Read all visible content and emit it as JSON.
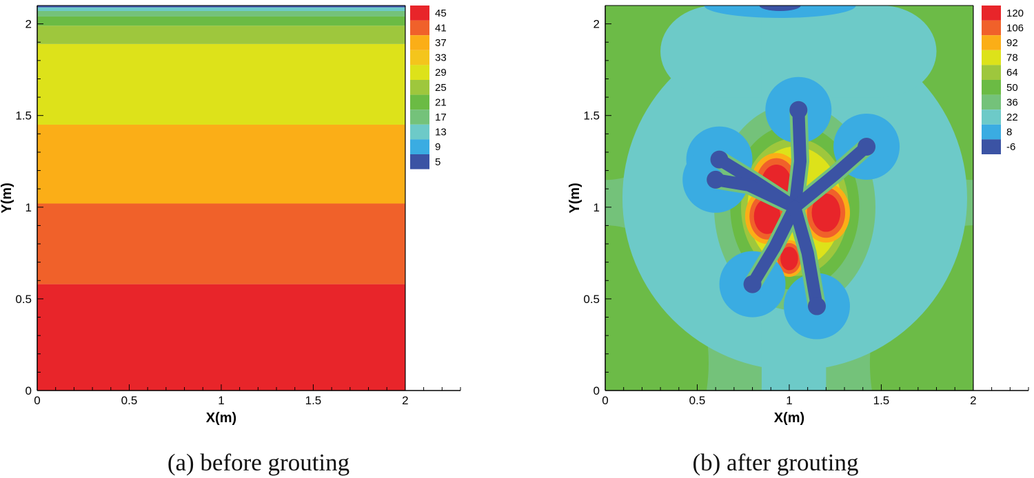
{
  "chart_data": [
    {
      "type": "contour",
      "panel": "a",
      "caption": "(a) before grouting",
      "xlabel": "X(m)",
      "ylabel": "Y(m)",
      "xlim": [
        0,
        2.3
      ],
      "ylim": [
        0,
        2.1
      ],
      "x_ticks": [
        "0",
        "0.5",
        "1",
        "1.5",
        "2"
      ],
      "y_ticks": [
        "0",
        "0.5",
        "1",
        "1.5",
        "2"
      ],
      "legend_levels": [
        "45",
        "41",
        "37",
        "33",
        "29",
        "25",
        "21",
        "17",
        "13",
        "9",
        "5"
      ],
      "legend_colors": [
        "#e8252a",
        "#f0612a",
        "#fbae17",
        "#f4c51c",
        "#dde21a",
        "#9ec73d",
        "#6bbb44",
        "#74c27a",
        "#6dcac8",
        "#3aace2",
        "#3b53a4"
      ],
      "bands": [
        {
          "y0": 0,
          "y1": 0.58,
          "color": "#e8252a",
          "level": "45"
        },
        {
          "y0": 0.58,
          "y1": 1.02,
          "color": "#f0612a",
          "level": "41"
        },
        {
          "y0": 1.02,
          "y1": 1.45,
          "color": "#fbae17",
          "level": "37"
        },
        {
          "y0": 1.45,
          "y1": 1.89,
          "color": "#dde21a",
          "level": "33"
        },
        {
          "y0": 1.89,
          "y1": 1.99,
          "color": "#9ec73d",
          "level": "29"
        },
        {
          "y0": 1.99,
          "y1": 2.04,
          "color": "#6bbb44",
          "level": "25"
        },
        {
          "y0": 2.04,
          "y1": 2.07,
          "color": "#74c27a",
          "level": "21"
        },
        {
          "y0": 2.07,
          "y1": 2.09,
          "color": "#6dcac8",
          "level": "17"
        },
        {
          "y0": 2.09,
          "y1": 2.1,
          "color": "#3b53a4",
          "level": "5"
        }
      ]
    },
    {
      "type": "contour",
      "panel": "b",
      "caption": "(b) after grouting",
      "xlabel": "X(m)",
      "ylabel": "Y(m)",
      "xlim": [
        0,
        2.3
      ],
      "ylim": [
        0,
        2.1
      ],
      "x_ticks": [
        "0",
        "0.5",
        "1",
        "1.5",
        "2"
      ],
      "y_ticks": [
        "0",
        "0.5",
        "1",
        "1.5",
        "2"
      ],
      "legend_levels": [
        "120",
        "106",
        "92",
        "78",
        "64",
        "50",
        "36",
        "22",
        "8",
        "-6"
      ],
      "legend_colors": [
        "#e8252a",
        "#f0612a",
        "#fbae17",
        "#dde21a",
        "#9ec73d",
        "#6bbb44",
        "#74c27a",
        "#6dcac8",
        "#3aace2",
        "#3b53a4"
      ],
      "background_color": "#74c27a",
      "grout_center": [
        1.03,
        1.0
      ],
      "grout_arms": [
        [
          [
            1.03,
            1.0
          ],
          [
            1.06,
            1.25
          ],
          [
            1.05,
            1.53
          ]
        ],
        [
          [
            1.03,
            1.0
          ],
          [
            1.25,
            1.18
          ],
          [
            1.42,
            1.33
          ]
        ],
        [
          [
            1.03,
            1.0
          ],
          [
            0.8,
            1.15
          ],
          [
            0.62,
            1.26
          ]
        ],
        [
          [
            1.03,
            1.0
          ],
          [
            0.78,
            1.12
          ],
          [
            0.6,
            1.15
          ]
        ],
        [
          [
            1.03,
            1.0
          ],
          [
            0.92,
            0.78
          ],
          [
            0.8,
            0.58
          ]
        ],
        [
          [
            1.03,
            1.0
          ],
          [
            1.1,
            0.75
          ],
          [
            1.15,
            0.46
          ]
        ]
      ],
      "hot_spots": [
        {
          "x": 0.93,
          "y": 1.12,
          "r": 0.14
        },
        {
          "x": 0.88,
          "y": 0.95,
          "r": 0.12
        },
        {
          "x": 1.2,
          "y": 0.97,
          "r": 0.13
        },
        {
          "x": 1.0,
          "y": 0.72,
          "r": 0.08
        }
      ]
    }
  ]
}
